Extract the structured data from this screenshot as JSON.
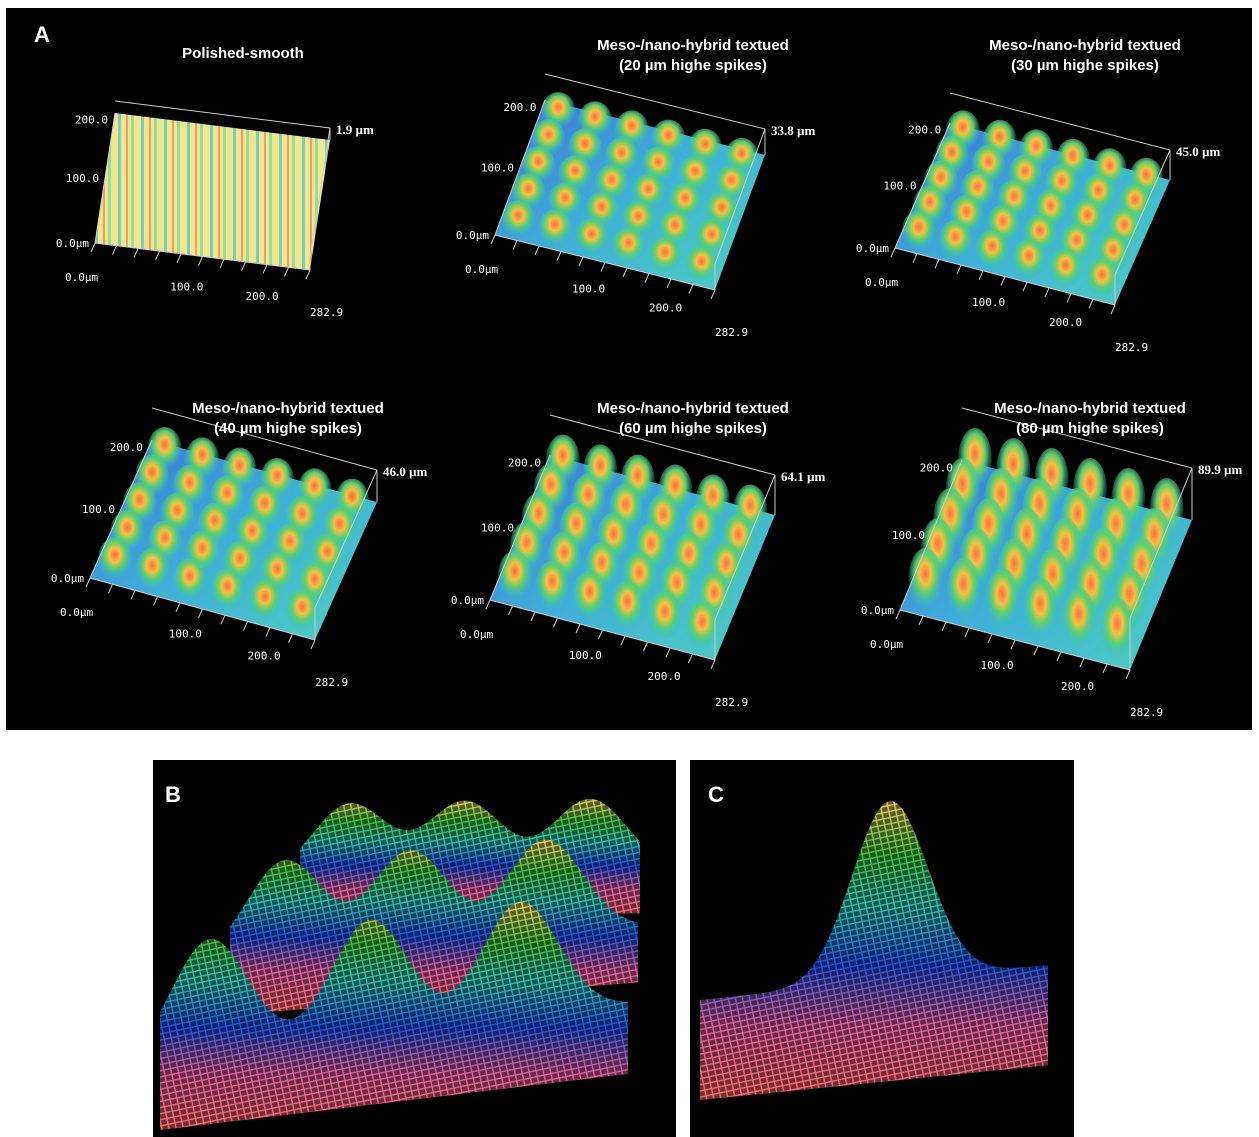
{
  "figure": {
    "panels": {
      "a": "A",
      "b": "B",
      "c": "C"
    },
    "plots": [
      {
        "title": [
          "Polished-smooth"
        ],
        "z_label": "1.9 µm",
        "y_ticks": [
          "0.0µm",
          "100.0",
          "200.0"
        ],
        "x_ticks": [
          "0.0µm",
          "100.0",
          "200.0",
          "282.9"
        ]
      },
      {
        "title": [
          "Meso-/nano-hybrid textued",
          "(20 µm highe spikes)"
        ],
        "z_label": "33.8 µm",
        "y_ticks": [
          "0.0µm",
          "100.0",
          "200.0"
        ],
        "x_ticks": [
          "0.0µm",
          "100.0",
          "200.0",
          "282.9"
        ]
      },
      {
        "title": [
          "Meso-/nano-hybrid textued",
          "(30 µm highe spikes)"
        ],
        "z_label": "45.0 µm",
        "y_ticks": [
          "0.0µm",
          "100.0",
          "200.0"
        ],
        "x_ticks": [
          "0.0µm",
          "100.0",
          "200.0",
          "282.9"
        ]
      },
      {
        "title": [
          "Meso-/nano-hybrid textued",
          "(40 µm highe spikes)"
        ],
        "z_label": "46.0 µm",
        "y_ticks": [
          "0.0µm",
          "100.0",
          "200.0"
        ],
        "x_ticks": [
          "0.0µm",
          "100.0",
          "200.0",
          "282.9"
        ]
      },
      {
        "title": [
          "Meso-/nano-hybrid textued",
          "(60 µm highe spikes)"
        ],
        "z_label": "64.1 µm",
        "y_ticks": [
          "0.0µm",
          "100.0",
          "200.0"
        ],
        "x_ticks": [
          "0.0µm",
          "100.0",
          "200.0",
          "282.9"
        ]
      },
      {
        "title": [
          "Meso-/nano-hybrid textued",
          "(80 µm highe spikes)"
        ],
        "z_label": "89.9 µm",
        "y_ticks": [
          "0.0µm",
          "100.0",
          "200.0"
        ],
        "x_ticks": [
          "0.0µm",
          "100.0",
          "200.0",
          "282.9"
        ]
      }
    ]
  }
}
